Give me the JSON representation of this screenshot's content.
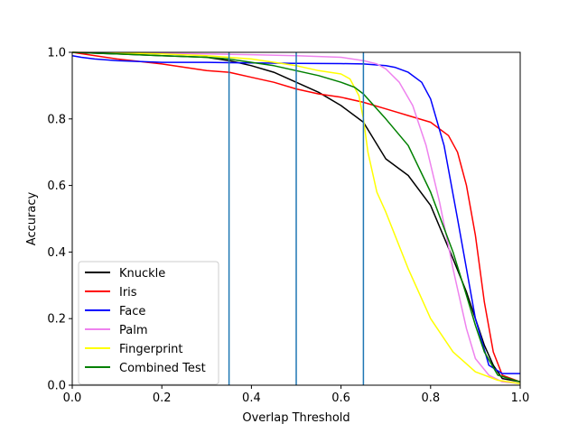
{
  "chart_data": {
    "type": "line",
    "title": "",
    "xlabel": "Overlap Threshold",
    "ylabel": "Accuracy",
    "xlim": [
      0,
      1
    ],
    "ylim": [
      0,
      1
    ],
    "xticks": [
      0.0,
      0.2,
      0.4,
      0.6,
      0.8,
      1.0
    ],
    "yticks": [
      0.0,
      0.2,
      0.4,
      0.6,
      0.8,
      1.0
    ],
    "xtick_labels": [
      "0.0",
      "0.2",
      "0.4",
      "0.6",
      "0.8",
      "1.0"
    ],
    "ytick_labels": [
      "0.0",
      "0.2",
      "0.4",
      "0.6",
      "0.8",
      "1.0"
    ],
    "legend_position": "lower-left",
    "vlines": {
      "x": [
        0.35,
        0.5,
        0.65
      ],
      "color": "#1f77b4"
    },
    "series": [
      {
        "name": "Knuckle",
        "color": "#000000",
        "x": [
          0,
          0.1,
          0.2,
          0.3,
          0.35,
          0.4,
          0.45,
          0.5,
          0.55,
          0.6,
          0.65,
          0.7,
          0.75,
          0.8,
          0.85,
          0.88,
          0.9,
          0.92,
          0.94,
          0.96,
          1.0
        ],
        "y": [
          1.0,
          0.995,
          0.99,
          0.985,
          0.975,
          0.96,
          0.94,
          0.91,
          0.88,
          0.84,
          0.79,
          0.68,
          0.63,
          0.54,
          0.38,
          0.28,
          0.2,
          0.12,
          0.06,
          0.02,
          0.01
        ]
      },
      {
        "name": "Iris",
        "color": "#ff0000",
        "x": [
          0,
          0.1,
          0.2,
          0.3,
          0.35,
          0.4,
          0.45,
          0.5,
          0.55,
          0.6,
          0.65,
          0.7,
          0.75,
          0.8,
          0.84,
          0.86,
          0.88,
          0.9,
          0.92,
          0.94,
          0.96,
          1.0
        ],
        "y": [
          1.0,
          0.98,
          0.965,
          0.945,
          0.94,
          0.925,
          0.91,
          0.89,
          0.875,
          0.865,
          0.85,
          0.83,
          0.81,
          0.79,
          0.75,
          0.7,
          0.6,
          0.45,
          0.25,
          0.1,
          0.03,
          0.01
        ]
      },
      {
        "name": "Face",
        "color": "#0000ff",
        "x": [
          0,
          0.02,
          0.05,
          0.1,
          0.2,
          0.3,
          0.4,
          0.5,
          0.6,
          0.65,
          0.7,
          0.72,
          0.75,
          0.78,
          0.8,
          0.83,
          0.86,
          0.9,
          0.93,
          0.96,
          1.0
        ],
        "y": [
          0.99,
          0.985,
          0.98,
          0.975,
          0.97,
          0.97,
          0.968,
          0.967,
          0.966,
          0.965,
          0.96,
          0.955,
          0.94,
          0.91,
          0.86,
          0.72,
          0.5,
          0.2,
          0.06,
          0.035,
          0.035
        ]
      },
      {
        "name": "Palm",
        "color": "#ee82ee",
        "x": [
          0,
          0.1,
          0.2,
          0.3,
          0.4,
          0.5,
          0.6,
          0.65,
          0.68,
          0.7,
          0.73,
          0.76,
          0.79,
          0.82,
          0.85,
          0.88,
          0.9,
          0.93,
          0.96,
          1.0
        ],
        "y": [
          1.0,
          0.998,
          0.997,
          0.995,
          0.993,
          0.99,
          0.985,
          0.975,
          0.965,
          0.95,
          0.91,
          0.84,
          0.72,
          0.55,
          0.35,
          0.17,
          0.08,
          0.03,
          0.01,
          0.005
        ]
      },
      {
        "name": "Fingerprint",
        "color": "#ffff00",
        "x": [
          0,
          0.1,
          0.2,
          0.3,
          0.4,
          0.5,
          0.55,
          0.6,
          0.62,
          0.64,
          0.65,
          0.66,
          0.68,
          0.7,
          0.75,
          0.8,
          0.85,
          0.9,
          0.95,
          1.0
        ],
        "y": [
          1.0,
          0.998,
          0.995,
          0.99,
          0.98,
          0.96,
          0.945,
          0.935,
          0.92,
          0.87,
          0.8,
          0.7,
          0.58,
          0.52,
          0.35,
          0.2,
          0.1,
          0.04,
          0.015,
          0.005
        ]
      },
      {
        "name": "Combined Test",
        "color": "#008000",
        "x": [
          0,
          0.1,
          0.2,
          0.3,
          0.35,
          0.4,
          0.45,
          0.5,
          0.55,
          0.6,
          0.63,
          0.65,
          0.68,
          0.7,
          0.75,
          0.8,
          0.85,
          0.88,
          0.9,
          0.92,
          0.95,
          1.0
        ],
        "y": [
          1.0,
          0.995,
          0.99,
          0.985,
          0.98,
          0.97,
          0.96,
          0.945,
          0.93,
          0.91,
          0.895,
          0.875,
          0.83,
          0.8,
          0.72,
          0.58,
          0.4,
          0.27,
          0.18,
          0.1,
          0.03,
          0.01
        ]
      }
    ]
  }
}
